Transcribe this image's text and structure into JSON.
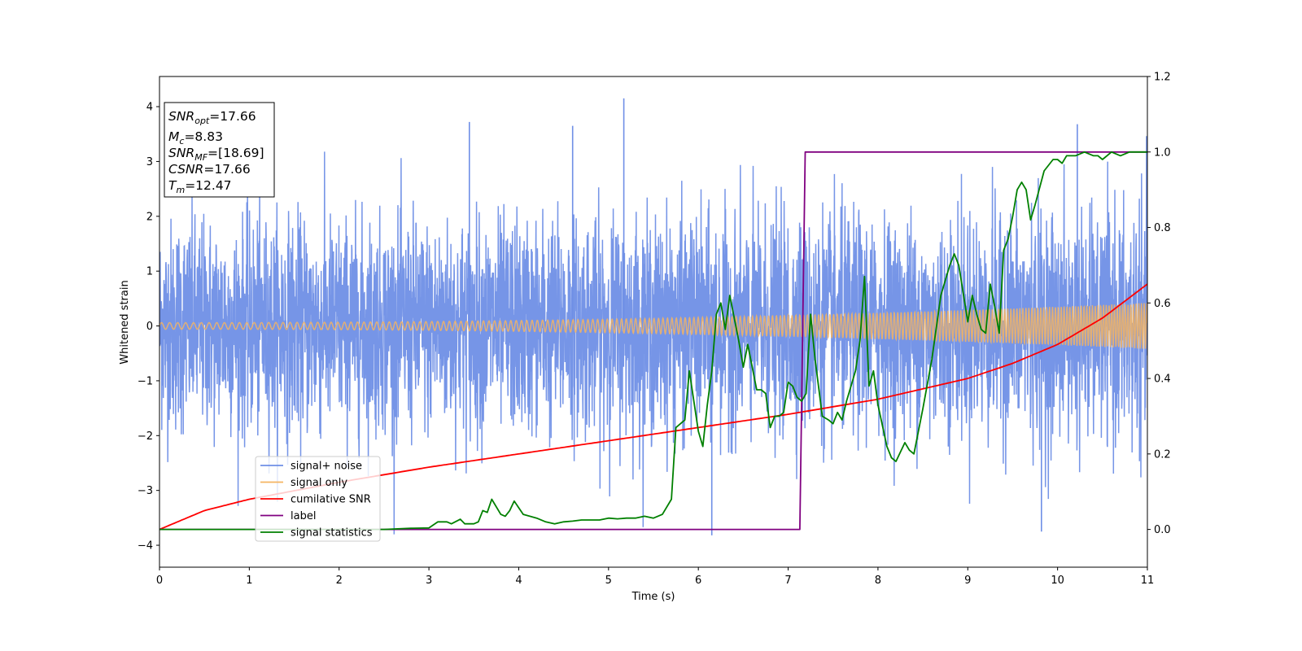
{
  "chart_data": {
    "type": "line",
    "xlabel": "Time (s)",
    "ylabel": "Whitened strain",
    "xlim": [
      0,
      11
    ],
    "ylim": [
      -4.4,
      4.55
    ],
    "ylim_right": [
      -0.1,
      1.2
    ],
    "x_ticks": [
      "0",
      "1",
      "2",
      "3",
      "4",
      "5",
      "6",
      "7",
      "8",
      "9",
      "10",
      "11"
    ],
    "y_ticks": [
      "4",
      "3",
      "2",
      "1",
      "0",
      "−1",
      "−2",
      "−3",
      "−4"
    ],
    "y_ticks_right": [
      "1.2",
      "1.0",
      "0.8",
      "0.6",
      "0.4",
      "0.2",
      "0.0"
    ],
    "info_box": {
      "snr_opt": "=17.66",
      "mc": "=8.83",
      "snr_mf": "=[18.69]",
      "csnr": "=17.66",
      "tm": "=12.47"
    },
    "legend": [
      {
        "label": "signal+ noise",
        "color": "#6f8fe6"
      },
      {
        "label": "signal only",
        "color": "#f5b461"
      },
      {
        "label": "cumilative SNR",
        "color": "#ff0000"
      },
      {
        "label": "label",
        "color": "#800080"
      },
      {
        "label": "signal statistics",
        "color": "#008000"
      }
    ],
    "series": [
      {
        "name": "signal+ noise",
        "axis": "left",
        "color": "#6f8fe6",
        "description_hidden": true,
        "std": 1.0,
        "notable_peaks": [
          [
            5.17,
            4.15
          ],
          [
            6.15,
            -3.82
          ],
          [
            3.45,
            3.72
          ],
          [
            4.6,
            3.65
          ],
          [
            10.22,
            3.68
          ],
          [
            9.82,
            -3.75
          ]
        ]
      },
      {
        "name": "signal only",
        "axis": "left",
        "color": "#f5b461",
        "amplitude_start": 0.06,
        "amplitude_end": 0.42
      },
      {
        "name": "cumilative SNR",
        "axis": "right",
        "color": "#ff0000",
        "x": [
          0,
          0.5,
          1,
          2,
          3,
          4,
          5,
          6,
          7,
          8,
          9,
          9.5,
          10,
          10.5,
          11
        ],
        "values": [
          0.0,
          0.05,
          0.08,
          0.125,
          0.165,
          0.2,
          0.235,
          0.27,
          0.305,
          0.345,
          0.4,
          0.44,
          0.49,
          0.56,
          0.65
        ]
      },
      {
        "name": "label",
        "axis": "right",
        "color": "#800080",
        "x": [
          0,
          7.13,
          7.19,
          11
        ],
        "values": [
          0,
          0,
          1,
          1
        ]
      },
      {
        "name": "signal statistics",
        "axis": "right",
        "color": "#008000",
        "x": [
          0,
          0.5,
          1,
          1.5,
          2,
          2.5,
          2.8,
          3.0,
          3.1,
          3.2,
          3.25,
          3.35,
          3.4,
          3.5,
          3.55,
          3.6,
          3.65,
          3.7,
          3.8,
          3.85,
          3.9,
          3.95,
          4.05,
          4.2,
          4.3,
          4.4,
          4.5,
          4.6,
          4.7,
          4.8,
          4.9,
          5.0,
          5.1,
          5.2,
          5.3,
          5.4,
          5.5,
          5.6,
          5.7,
          5.75,
          5.85,
          5.9,
          6.0,
          6.05,
          6.1,
          6.15,
          6.2,
          6.25,
          6.3,
          6.35,
          6.45,
          6.5,
          6.55,
          6.65,
          6.7,
          6.75,
          6.8,
          6.85,
          6.9,
          6.95,
          7.0,
          7.05,
          7.1,
          7.15,
          7.2,
          7.25,
          7.3,
          7.38,
          7.45,
          7.5,
          7.55,
          7.6,
          7.65,
          7.7,
          7.75,
          7.8,
          7.85,
          7.9,
          7.95,
          8.0,
          8.1,
          8.15,
          8.2,
          8.3,
          8.35,
          8.4,
          8.5,
          8.6,
          8.7,
          8.8,
          8.85,
          8.9,
          9.0,
          9.05,
          9.1,
          9.15,
          9.2,
          9.25,
          9.3,
          9.35,
          9.4,
          9.45,
          9.5,
          9.55,
          9.6,
          9.65,
          9.7,
          9.75,
          9.85,
          9.95,
          10.0,
          10.05,
          10.1,
          10.2,
          10.3,
          10.4,
          10.45,
          10.5,
          10.6,
          10.7,
          10.8,
          10.9,
          11.0
        ],
        "values": [
          0.0,
          0.0,
          0.0,
          0.0,
          0.0,
          0.0,
          0.003,
          0.004,
          0.02,
          0.02,
          0.015,
          0.027,
          0.015,
          0.015,
          0.02,
          0.05,
          0.045,
          0.08,
          0.04,
          0.035,
          0.05,
          0.075,
          0.04,
          0.03,
          0.02,
          0.015,
          0.02,
          0.022,
          0.025,
          0.025,
          0.025,
          0.03,
          0.028,
          0.03,
          0.03,
          0.035,
          0.03,
          0.04,
          0.08,
          0.27,
          0.29,
          0.42,
          0.26,
          0.22,
          0.33,
          0.42,
          0.57,
          0.6,
          0.53,
          0.62,
          0.5,
          0.43,
          0.49,
          0.37,
          0.37,
          0.36,
          0.27,
          0.3,
          0.3,
          0.31,
          0.39,
          0.38,
          0.35,
          0.34,
          0.36,
          0.57,
          0.45,
          0.3,
          0.29,
          0.28,
          0.31,
          0.29,
          0.34,
          0.38,
          0.42,
          0.5,
          0.67,
          0.38,
          0.42,
          0.33,
          0.22,
          0.19,
          0.18,
          0.23,
          0.21,
          0.2,
          0.32,
          0.45,
          0.62,
          0.7,
          0.73,
          0.7,
          0.55,
          0.62,
          0.57,
          0.53,
          0.52,
          0.65,
          0.59,
          0.52,
          0.74,
          0.77,
          0.83,
          0.9,
          0.92,
          0.9,
          0.82,
          0.86,
          0.95,
          0.98,
          0.98,
          0.97,
          0.99,
          0.99,
          1.0,
          0.99,
          0.99,
          0.98,
          1.0,
          0.99,
          1.0,
          1.0,
          1.0
        ]
      }
    ]
  }
}
